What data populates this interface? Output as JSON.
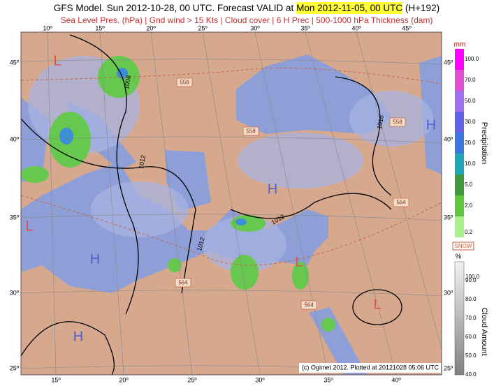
{
  "header": {
    "title_start": "GFS Model. Sun 2012-10-28, 00 UTC. Forecast VALID at ",
    "title_valid": "Mon 2012-11-05, 00 UTC",
    "title_end": " (H+192)",
    "subtitle": "Sea Level Pres. (hPa) | Gnd wind > 15 Kts | Cloud cover | 6 H Prec | 500-1000 hPa Thickness (dam)"
  },
  "map": {
    "lon_top": [
      "10º",
      "15º",
      "20º",
      "25º",
      "30º",
      "35º",
      "40º",
      "45º"
    ],
    "lon_bottom": [
      "15º",
      "20º",
      "25º",
      "30º",
      "35º",
      "40º"
    ],
    "lat_left": [
      "45º",
      "40º",
      "35º",
      "30º",
      "25º"
    ],
    "lat_right": [
      "45º",
      "40º",
      "35º",
      "30º",
      "25º"
    ],
    "pressure_centers": [
      "L",
      "H",
      "H",
      "L",
      "H",
      "L",
      "L",
      "H"
    ],
    "isobar_labels": [
      "1008",
      "1012",
      "1012",
      "1012",
      "1016"
    ],
    "thickness_labels": [
      "558",
      "558",
      "558",
      "564",
      "564",
      "564"
    ],
    "credit": "(c) Ogimet 2012. Plotted at 20121028 05:06 UTC"
  },
  "precipitation_scale": {
    "unit": "mm",
    "title": "Precipitation",
    "labels": [
      "100.0",
      "70.0",
      "50.0",
      "30.0",
      "20.0",
      "10.0",
      "5.0",
      "2.0",
      "0.2"
    ]
  },
  "cloud_scale": {
    "snow": "SNOW",
    "unit": "%",
    "title": "Cloud Amount",
    "labels": [
      "100.0",
      "90.0",
      "80.0",
      "70.0",
      "60.0",
      "50.0",
      "40.0"
    ]
  }
}
